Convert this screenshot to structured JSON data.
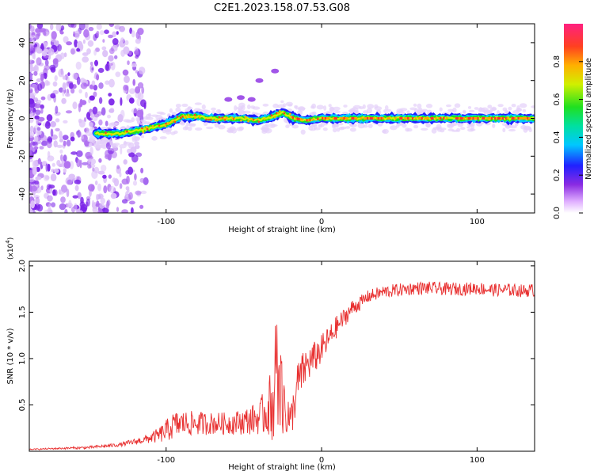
{
  "chart_data": [
    {
      "type": "heatmap",
      "title": "C2E1.2023.158.07.53.G08",
      "xlabel": "Height of straight line (km)",
      "ylabel": "Frequency (Hz)",
      "xlim": [
        -188,
        137
      ],
      "ylim": [
        -50,
        50
      ],
      "xticks": [
        -100,
        0,
        100
      ],
      "xtick_labels": [
        "-100",
        "0",
        "100"
      ],
      "yticks": [
        -40,
        -20,
        0,
        20,
        40
      ],
      "ytick_labels": [
        "-40",
        "-20",
        "0",
        "20",
        "40"
      ],
      "colorbar": {
        "label": "Normalized spectral amplitude",
        "range": [
          0,
          1
        ],
        "ticks": [
          0.0,
          0.2,
          0.4,
          0.6,
          0.8
        ],
        "tick_labels": [
          "0.0",
          "0.2",
          "0.4",
          "0.6",
          "0.8"
        ]
      },
      "ridge": {
        "name": "dominant frequency trace",
        "x": [
          -145,
          -130,
          -115,
          -100,
          -90,
          -80,
          -70,
          -60,
          -50,
          -40,
          -32,
          -25,
          -18,
          -10,
          0,
          20,
          40,
          60,
          80,
          100,
          120,
          135
        ],
        "y": [
          -8,
          -8,
          -6,
          -3,
          1,
          1,
          0,
          0,
          0,
          -1,
          1,
          3,
          0,
          -1,
          0,
          0,
          0,
          0,
          0,
          0,
          0,
          0
        ]
      }
    },
    {
      "type": "line",
      "xlabel": "Height of straight line (km)",
      "ylabel": "SNR (10 * v/v)",
      "yscale_label": "(x10",
      "yscale_exp": "4",
      "yscale_close": ")",
      "xlim": [
        -188,
        137
      ],
      "ylim": [
        0,
        2.05
      ],
      "xticks": [
        -100,
        0,
        100
      ],
      "xtick_labels": [
        "-100",
        "0",
        "100"
      ],
      "yticks": [
        0.5,
        1.0,
        1.5,
        2.0
      ],
      "ytick_labels": [
        "0.5",
        "1.0",
        "1.5",
        "2.0"
      ],
      "series": [
        {
          "name": "SNR",
          "color": "#e83030",
          "x": [
            -188,
            -170,
            -150,
            -130,
            -115,
            -105,
            -100,
            -95,
            -90,
            -80,
            -70,
            -60,
            -50,
            -40,
            -35,
            -30,
            -25,
            -20,
            -15,
            -10,
            -5,
            0,
            5,
            10,
            15,
            20,
            25,
            30,
            40,
            50,
            60,
            70,
            80,
            90,
            100,
            110,
            120,
            130,
            137
          ],
          "values": [
            0.02,
            0.03,
            0.04,
            0.07,
            0.12,
            0.17,
            0.22,
            0.28,
            0.3,
            0.3,
            0.3,
            0.3,
            0.32,
            0.36,
            0.45,
            0.55,
            0.6,
            0.3,
            0.75,
            0.92,
            1.0,
            1.1,
            1.22,
            1.35,
            1.45,
            1.55,
            1.6,
            1.67,
            1.72,
            1.74,
            1.76,
            1.76,
            1.75,
            1.75,
            1.76,
            1.74,
            1.74,
            1.73,
            1.74
          ],
          "noise": [
            0.005,
            0.01,
            0.015,
            0.02,
            0.04,
            0.08,
            0.12,
            0.15,
            0.14,
            0.13,
            0.12,
            0.12,
            0.14,
            0.18,
            0.3,
            0.45,
            0.45,
            0.2,
            0.25,
            0.2,
            0.18,
            0.16,
            0.14,
            0.12,
            0.1,
            0.09,
            0.08,
            0.07,
            0.07,
            0.07,
            0.07,
            0.07,
            0.07,
            0.07,
            0.07,
            0.07,
            0.07,
            0.07,
            0.07
          ]
        }
      ]
    }
  ]
}
